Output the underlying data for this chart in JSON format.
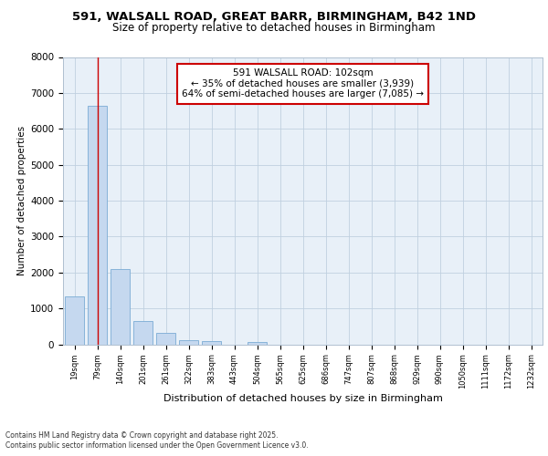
{
  "title_line1": "591, WALSALL ROAD, GREAT BARR, BIRMINGHAM, B42 1ND",
  "title_line2": "Size of property relative to detached houses in Birmingham",
  "xlabel": "Distribution of detached houses by size in Birmingham",
  "ylabel": "Number of detached properties",
  "categories": [
    "19sqm",
    "79sqm",
    "140sqm",
    "201sqm",
    "261sqm",
    "322sqm",
    "383sqm",
    "443sqm",
    "504sqm",
    "565sqm",
    "625sqm",
    "686sqm",
    "747sqm",
    "807sqm",
    "868sqm",
    "929sqm",
    "990sqm",
    "1050sqm",
    "1111sqm",
    "1172sqm",
    "1232sqm"
  ],
  "values": [
    1340,
    6650,
    2090,
    640,
    305,
    110,
    85,
    0,
    55,
    0,
    0,
    0,
    0,
    0,
    0,
    0,
    0,
    0,
    0,
    0,
    0
  ],
  "bar_color": "#c5d8ef",
  "bar_edge_color": "#7aacd4",
  "vline_x_index": 1,
  "vline_color": "#cc0000",
  "ylim": [
    0,
    8000
  ],
  "yticks": [
    0,
    1000,
    2000,
    3000,
    4000,
    5000,
    6000,
    7000,
    8000
  ],
  "annotation_title": "591 WALSALL ROAD: 102sqm",
  "annotation_line2": "← 35% of detached houses are smaller (3,939)",
  "annotation_line3": "64% of semi-detached houses are larger (7,085) →",
  "annotation_box_color": "#cc0000",
  "grid_color": "#c0d0e0",
  "bg_color": "#dce8f5",
  "plot_bg": "#e8f0f8",
  "footnote1": "Contains HM Land Registry data © Crown copyright and database right 2025.",
  "footnote2": "Contains public sector information licensed under the Open Government Licence v3.0."
}
